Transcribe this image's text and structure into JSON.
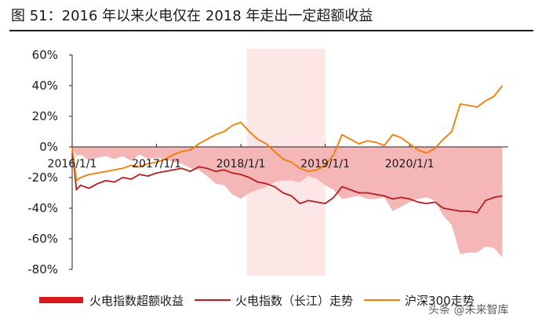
{
  "figure": {
    "title": "图 51：2016 年以来火电仅在 2018 年走出一定超额收益"
  },
  "watermark": "头条 @未来智库",
  "colors": {
    "excess_fill": "#f4b6b6",
    "excess_legend": "#d7191c",
    "thermal_line": "#b71c1c",
    "hs300_line": "#f57c00",
    "shade": "#fde6e6",
    "axis": "#222222"
  },
  "chart_data": {
    "type": "line",
    "title": "2016 年以来火电仅在 2018 年走出一定超额收益",
    "ylim": [
      -80,
      60
    ],
    "yticks": [
      "60%",
      "40%",
      "20%",
      "0%",
      "-20%",
      "-40%",
      "-60%",
      "-80%"
    ],
    "ytick_values": [
      60,
      40,
      20,
      0,
      -20,
      -40,
      -60,
      -80
    ],
    "xlim": [
      2016.0,
      2021.17
    ],
    "xticks": [
      "2016/1/1",
      "2017/1/1",
      "2018/1/1",
      "2019/1/1",
      "2020/1/1"
    ],
    "xtick_values": [
      2016.0,
      2017.0,
      2018.0,
      2019.0,
      2020.0
    ],
    "highlight_range": [
      2018.07,
      2019.0
    ],
    "legend": [
      "火电指数超额收益",
      "火电指数（长江）走势",
      "沪深300走势"
    ],
    "series": [
      {
        "name": "火电指数（长江）走势",
        "kind": "line",
        "x": [
          2016.0,
          2016.05,
          2016.1,
          2016.2,
          2016.3,
          2016.4,
          2016.5,
          2016.6,
          2016.7,
          2016.8,
          2016.9,
          2017.0,
          2017.1,
          2017.2,
          2017.3,
          2017.4,
          2017.5,
          2017.6,
          2017.7,
          2017.8,
          2017.9,
          2018.0,
          2018.1,
          2018.2,
          2018.3,
          2018.4,
          2018.5,
          2018.6,
          2018.7,
          2018.8,
          2018.9,
          2019.0,
          2019.1,
          2019.2,
          2019.3,
          2019.4,
          2019.5,
          2019.6,
          2019.7,
          2019.8,
          2019.9,
          2020.0,
          2020.1,
          2020.2,
          2020.3,
          2020.4,
          2020.5,
          2020.6,
          2020.7,
          2020.8,
          2020.9,
          2021.0,
          2021.1
        ],
        "values": [
          0,
          -28,
          -25,
          -27,
          -24,
          -22,
          -23,
          -20,
          -21,
          -18,
          -19,
          -17,
          -16,
          -15,
          -14,
          -16,
          -13,
          -14,
          -16,
          -15,
          -17,
          -18,
          -20,
          -23,
          -24,
          -26,
          -30,
          -32,
          -37,
          -35,
          -36,
          -37,
          -33,
          -26,
          -28,
          -30,
          -30,
          -31,
          -32,
          -34,
          -33,
          -34,
          -36,
          -37,
          -36,
          -40,
          -41,
          -42,
          -42,
          -43,
          -35,
          -33,
          -32
        ]
      },
      {
        "name": "沪深300走势",
        "kind": "line",
        "x": [
          2016.0,
          2016.05,
          2016.1,
          2016.2,
          2016.3,
          2016.4,
          2016.5,
          2016.6,
          2016.7,
          2016.8,
          2016.9,
          2017.0,
          2017.1,
          2017.2,
          2017.3,
          2017.4,
          2017.5,
          2017.6,
          2017.7,
          2017.8,
          2017.9,
          2018.0,
          2018.1,
          2018.2,
          2018.3,
          2018.4,
          2018.5,
          2018.6,
          2018.7,
          2018.8,
          2018.9,
          2019.0,
          2019.1,
          2019.2,
          2019.3,
          2019.4,
          2019.5,
          2019.6,
          2019.7,
          2019.8,
          2019.9,
          2020.0,
          2020.1,
          2020.2,
          2020.3,
          2020.4,
          2020.5,
          2020.6,
          2020.7,
          2020.8,
          2020.9,
          2021.0,
          2021.1
        ],
        "values": [
          0,
          -22,
          -20,
          -18,
          -17,
          -16,
          -15,
          -14,
          -12,
          -13,
          -11,
          -10,
          -8,
          -5,
          -3,
          -2,
          2,
          5,
          8,
          10,
          14,
          16,
          10,
          5,
          2,
          -3,
          -8,
          -10,
          -14,
          -16,
          -15,
          -12,
          -5,
          8,
          5,
          2,
          4,
          3,
          1,
          8,
          6,
          2,
          -2,
          -4,
          -1,
          5,
          10,
          28,
          27,
          26,
          30,
          33,
          40
        ]
      },
      {
        "name": "火电指数超额收益",
        "kind": "area",
        "x": [
          2016.0,
          2016.05,
          2016.1,
          2016.2,
          2016.3,
          2016.4,
          2016.5,
          2016.6,
          2016.7,
          2016.8,
          2016.9,
          2017.0,
          2017.1,
          2017.2,
          2017.3,
          2017.4,
          2017.5,
          2017.6,
          2017.7,
          2017.8,
          2017.9,
          2018.0,
          2018.1,
          2018.2,
          2018.3,
          2018.4,
          2018.5,
          2018.6,
          2018.7,
          2018.8,
          2018.9,
          2019.0,
          2019.1,
          2019.2,
          2019.3,
          2019.4,
          2019.5,
          2019.6,
          2019.7,
          2019.8,
          2019.9,
          2020.0,
          2020.1,
          2020.2,
          2020.3,
          2020.4,
          2020.5,
          2020.6,
          2020.7,
          2020.8,
          2020.9,
          2021.0,
          2021.1
        ],
        "values": [
          0,
          -6,
          -5,
          -9,
          -7,
          -6,
          -8,
          -6,
          -9,
          -5,
          -8,
          -7,
          -8,
          -10,
          -11,
          -14,
          -15,
          -19,
          -24,
          -25,
          -31,
          -34,
          -30,
          -28,
          -26,
          -23,
          -22,
          -22,
          -23,
          -19,
          -21,
          -25,
          -28,
          -34,
          -33,
          -32,
          -34,
          -34,
          -33,
          -42,
          -39,
          -36,
          -34,
          -33,
          -35,
          -45,
          -51,
          -70,
          -69,
          -69,
          -65,
          -66,
          -72
        ]
      }
    ]
  }
}
